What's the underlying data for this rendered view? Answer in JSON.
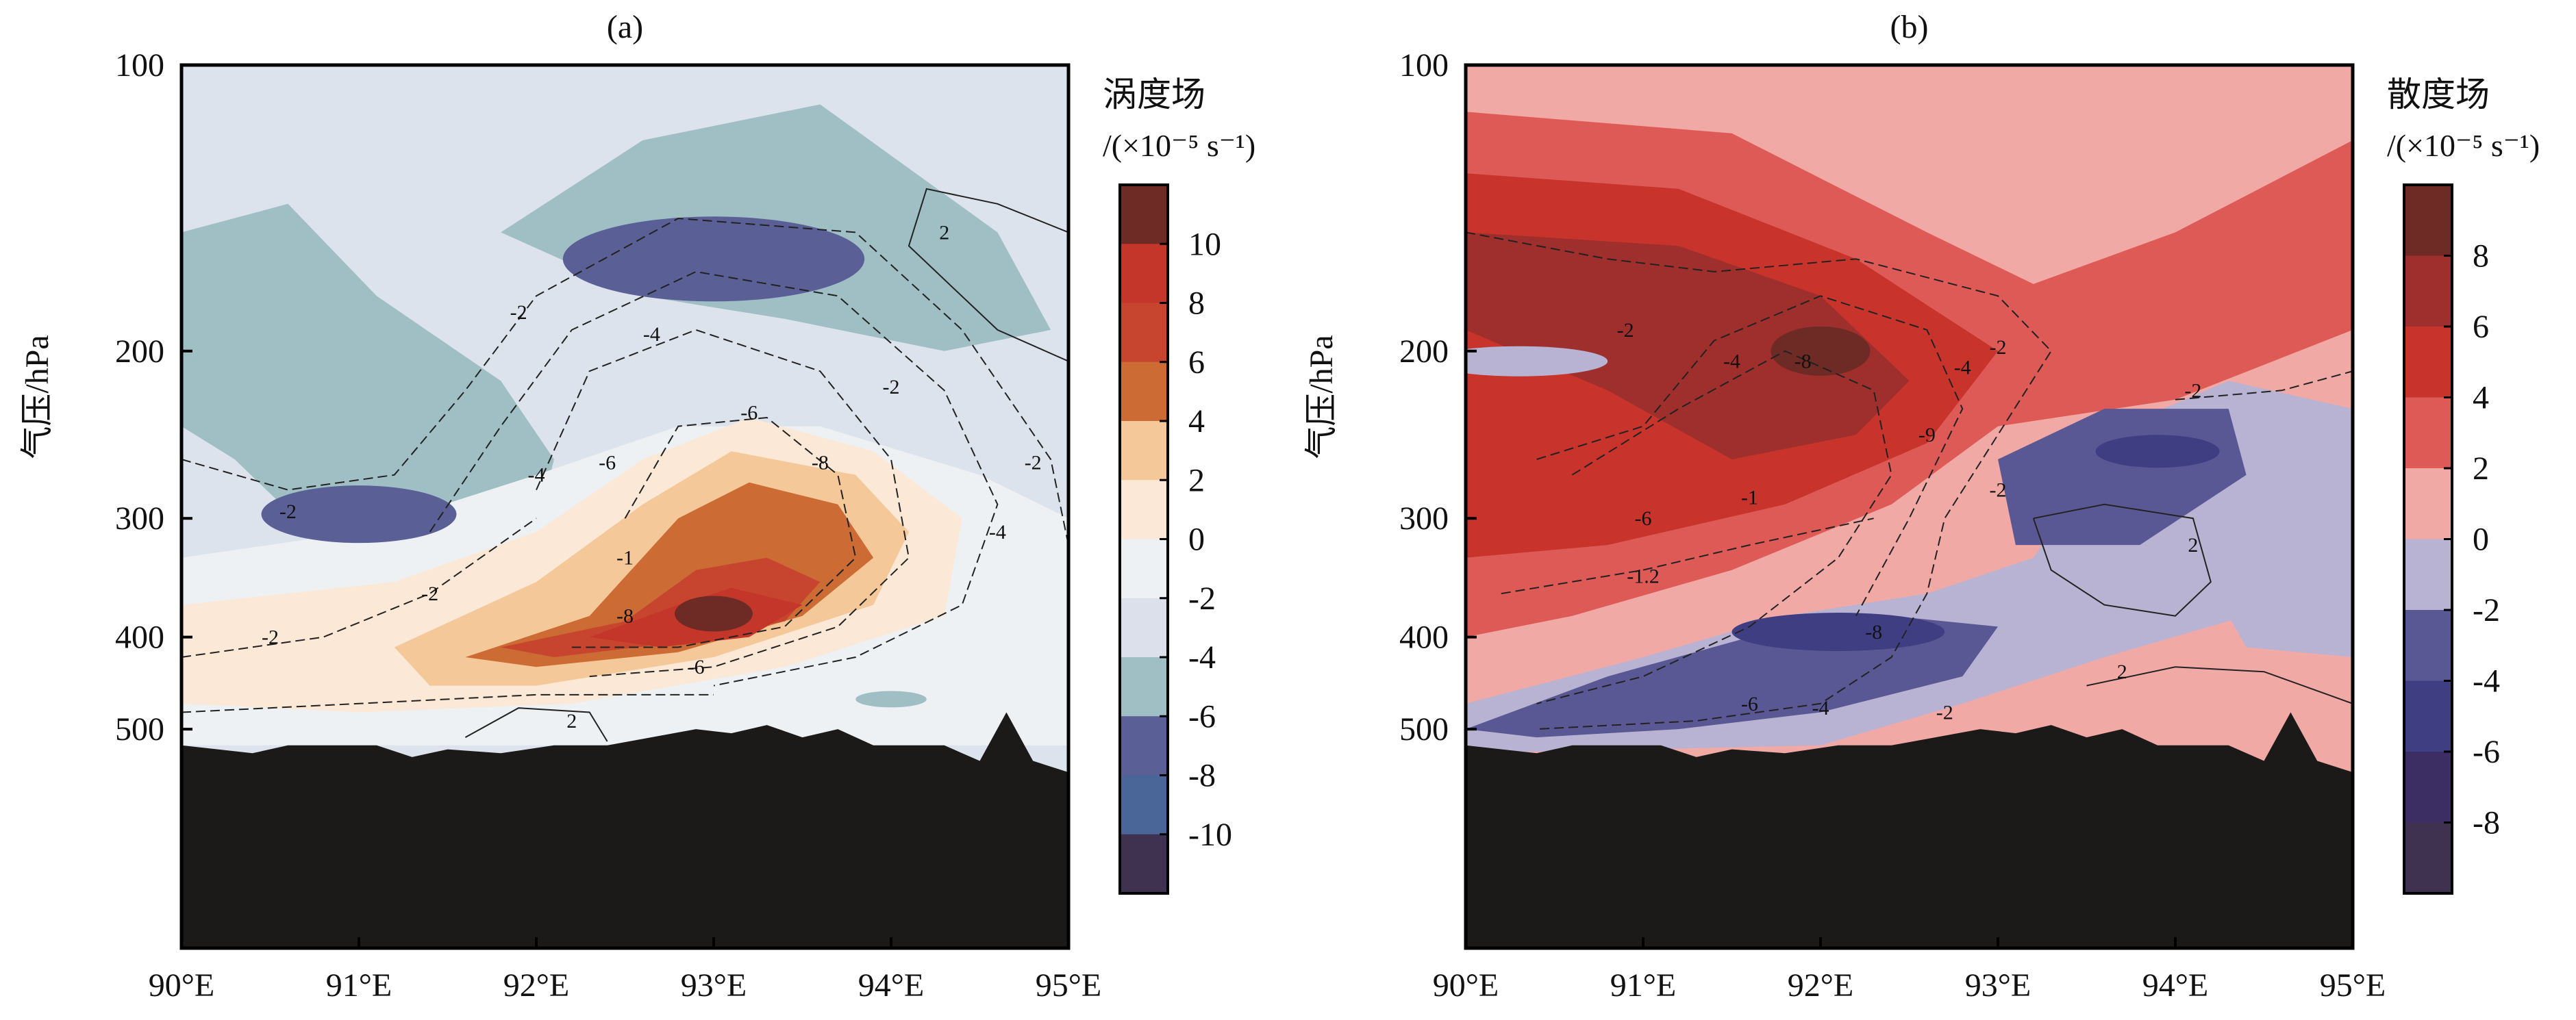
{
  "chart_data": [
    {
      "panel": "(a)",
      "type": "heatmap",
      "variable": "涡度场",
      "unit": "/(×10⁻⁵ s⁻¹)",
      "xlabel": "",
      "ylabel": "气压/hPa",
      "x_ticks": [
        "90°E",
        "91°E",
        "92°E",
        "93°E",
        "94°E",
        "95°E"
      ],
      "xlim": [
        90,
        95
      ],
      "y_ticks": [
        100,
        200,
        300,
        400,
        500
      ],
      "ylim": [
        100,
        850
      ],
      "y_scale": "log-pressure",
      "terrain_top_hpa": 560,
      "colorbar": {
        "ticks": [
          "10",
          "8",
          "6",
          "4",
          "2",
          "0",
          "-2",
          "-4",
          "-6",
          "-8",
          "-10"
        ],
        "colors": [
          "#6e2a24",
          "#c4362a",
          "#c7452f",
          "#cd6b35",
          "#f4c898",
          "#fbe8d6",
          "#eef1f3",
          "#dbe0ea",
          "#9fbfc5",
          "#5a5f96",
          "#4a6699",
          "#3f3150"
        ]
      },
      "features": [
        {
          "name": "positive vorticity core",
          "lon": 93.0,
          "p": 380,
          "value": 10
        },
        {
          "name": "positive vorticity tongue",
          "lon": 92.3,
          "p": 410,
          "value": 4
        },
        {
          "name": "negative vorticity upper",
          "lon": 92.7,
          "p": 165,
          "value": -8
        },
        {
          "name": "negative vorticity west",
          "lon": 91.0,
          "p": 300,
          "value": -8
        },
        {
          "name": "negative vorticity east",
          "lon": 94.0,
          "p": 450,
          "value": -6
        }
      ],
      "contour_labels": [
        "-2",
        "-4",
        "-6",
        "-8",
        "-1",
        "-2",
        "-4",
        "-6",
        "-8",
        "-2",
        "-2",
        "-4",
        "-6",
        "-2",
        "-2",
        "2",
        "2",
        "-2"
      ]
    },
    {
      "panel": "(b)",
      "type": "heatmap",
      "variable": "散度场",
      "unit": "/(×10⁻⁵ s⁻¹)",
      "xlabel": "",
      "ylabel": "气压/hPa",
      "x_ticks": [
        "90°E",
        "91°E",
        "92°E",
        "93°E",
        "94°E",
        "95°E"
      ],
      "xlim": [
        90,
        95
      ],
      "y_ticks": [
        100,
        200,
        300,
        400,
        500
      ],
      "ylim": [
        100,
        850
      ],
      "y_scale": "log-pressure",
      "terrain_top_hpa": 560,
      "colorbar": {
        "ticks": [
          "8",
          "6",
          "4",
          "2",
          "0",
          "-2",
          "-4",
          "-6",
          "-8"
        ],
        "colors": [
          "#6e2a24",
          "#9e2f2c",
          "#c8332b",
          "#dd5a56",
          "#f1a9a6",
          "#b8b3d2",
          "#5a5894",
          "#3f3e82",
          "#3c2d63",
          "#3f3150"
        ]
      },
      "features": [
        {
          "name": "divergence core",
          "lon": 92.0,
          "p": 200,
          "value": 8
        },
        {
          "name": "divergence band",
          "lon": 91.3,
          "p": 250,
          "value": 4
        },
        {
          "name": "convergence lower",
          "lon": 92.0,
          "p": 400,
          "value": -6
        },
        {
          "name": "convergence east",
          "lon": 93.8,
          "p": 260,
          "value": -4
        }
      ],
      "contour_labels": [
        "-2",
        "-4",
        "-6",
        "-8",
        "-1",
        "-1.2",
        "-6",
        "-8",
        "-6",
        "-4",
        "-2",
        "-2",
        "-2",
        "-2",
        "-9",
        "2",
        "-2"
      ]
    }
  ],
  "panel_labels": [
    "(a)",
    "(b)"
  ],
  "colors": {
    "terrain": "#1c1a19",
    "axis": "#000000",
    "contour": "#222222"
  }
}
